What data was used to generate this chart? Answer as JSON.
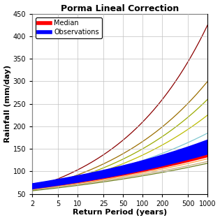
{
  "title": "Porma Lineal Correction",
  "xlabel": "Return Period (years)",
  "ylabel": "Rainfall (mm/day)",
  "xticks": [
    2,
    5,
    10,
    25,
    50,
    100,
    200,
    500,
    1000
  ],
  "ylim": [
    50,
    450
  ],
  "xlim": [
    2,
    1000
  ],
  "legend_median_color": "#FF0000",
  "legend_obs_color": "#0000FF",
  "background_color": "#FFFFFF",
  "grid_color": "#C0C0C0",
  "thin_curves": [
    {
      "color": "#8B0000",
      "start": 63,
      "end": 425
    },
    {
      "color": "#9B6E00",
      "start": 61,
      "end": 300
    },
    {
      "color": "#9AAB00",
      "start": 59,
      "end": 260
    },
    {
      "color": "#BCBC00",
      "start": 58,
      "end": 225
    },
    {
      "color": "#80C8D0",
      "start": 63,
      "end": 185
    },
    {
      "color": "#FFA040",
      "start": 60,
      "end": 128
    },
    {
      "color": "#C8A878",
      "start": 59,
      "end": 122
    },
    {
      "color": "#708020",
      "start": 57,
      "end": 118
    }
  ],
  "median_curves": [
    {
      "start": 69,
      "end": 152
    },
    {
      "start": 67,
      "end": 147
    },
    {
      "start": 65,
      "end": 142
    },
    {
      "start": 64,
      "end": 138
    },
    {
      "start": 63,
      "end": 134
    }
  ],
  "obs_curves": [
    {
      "start": 71,
      "end": 168
    },
    {
      "start": 70,
      "end": 165
    },
    {
      "start": 69,
      "end": 162
    },
    {
      "start": 68,
      "end": 158
    },
    {
      "start": 67,
      "end": 155
    },
    {
      "start": 66,
      "end": 152
    },
    {
      "start": 65,
      "end": 148
    },
    {
      "start": 64,
      "end": 144
    },
    {
      "start": 63,
      "end": 140
    }
  ],
  "title_fontsize": 9,
  "label_fontsize": 8,
  "tick_fontsize": 7,
  "legend_fontsize": 7,
  "median_lw": 2.5,
  "obs_lw": 2.5,
  "thin_lw": 0.9
}
